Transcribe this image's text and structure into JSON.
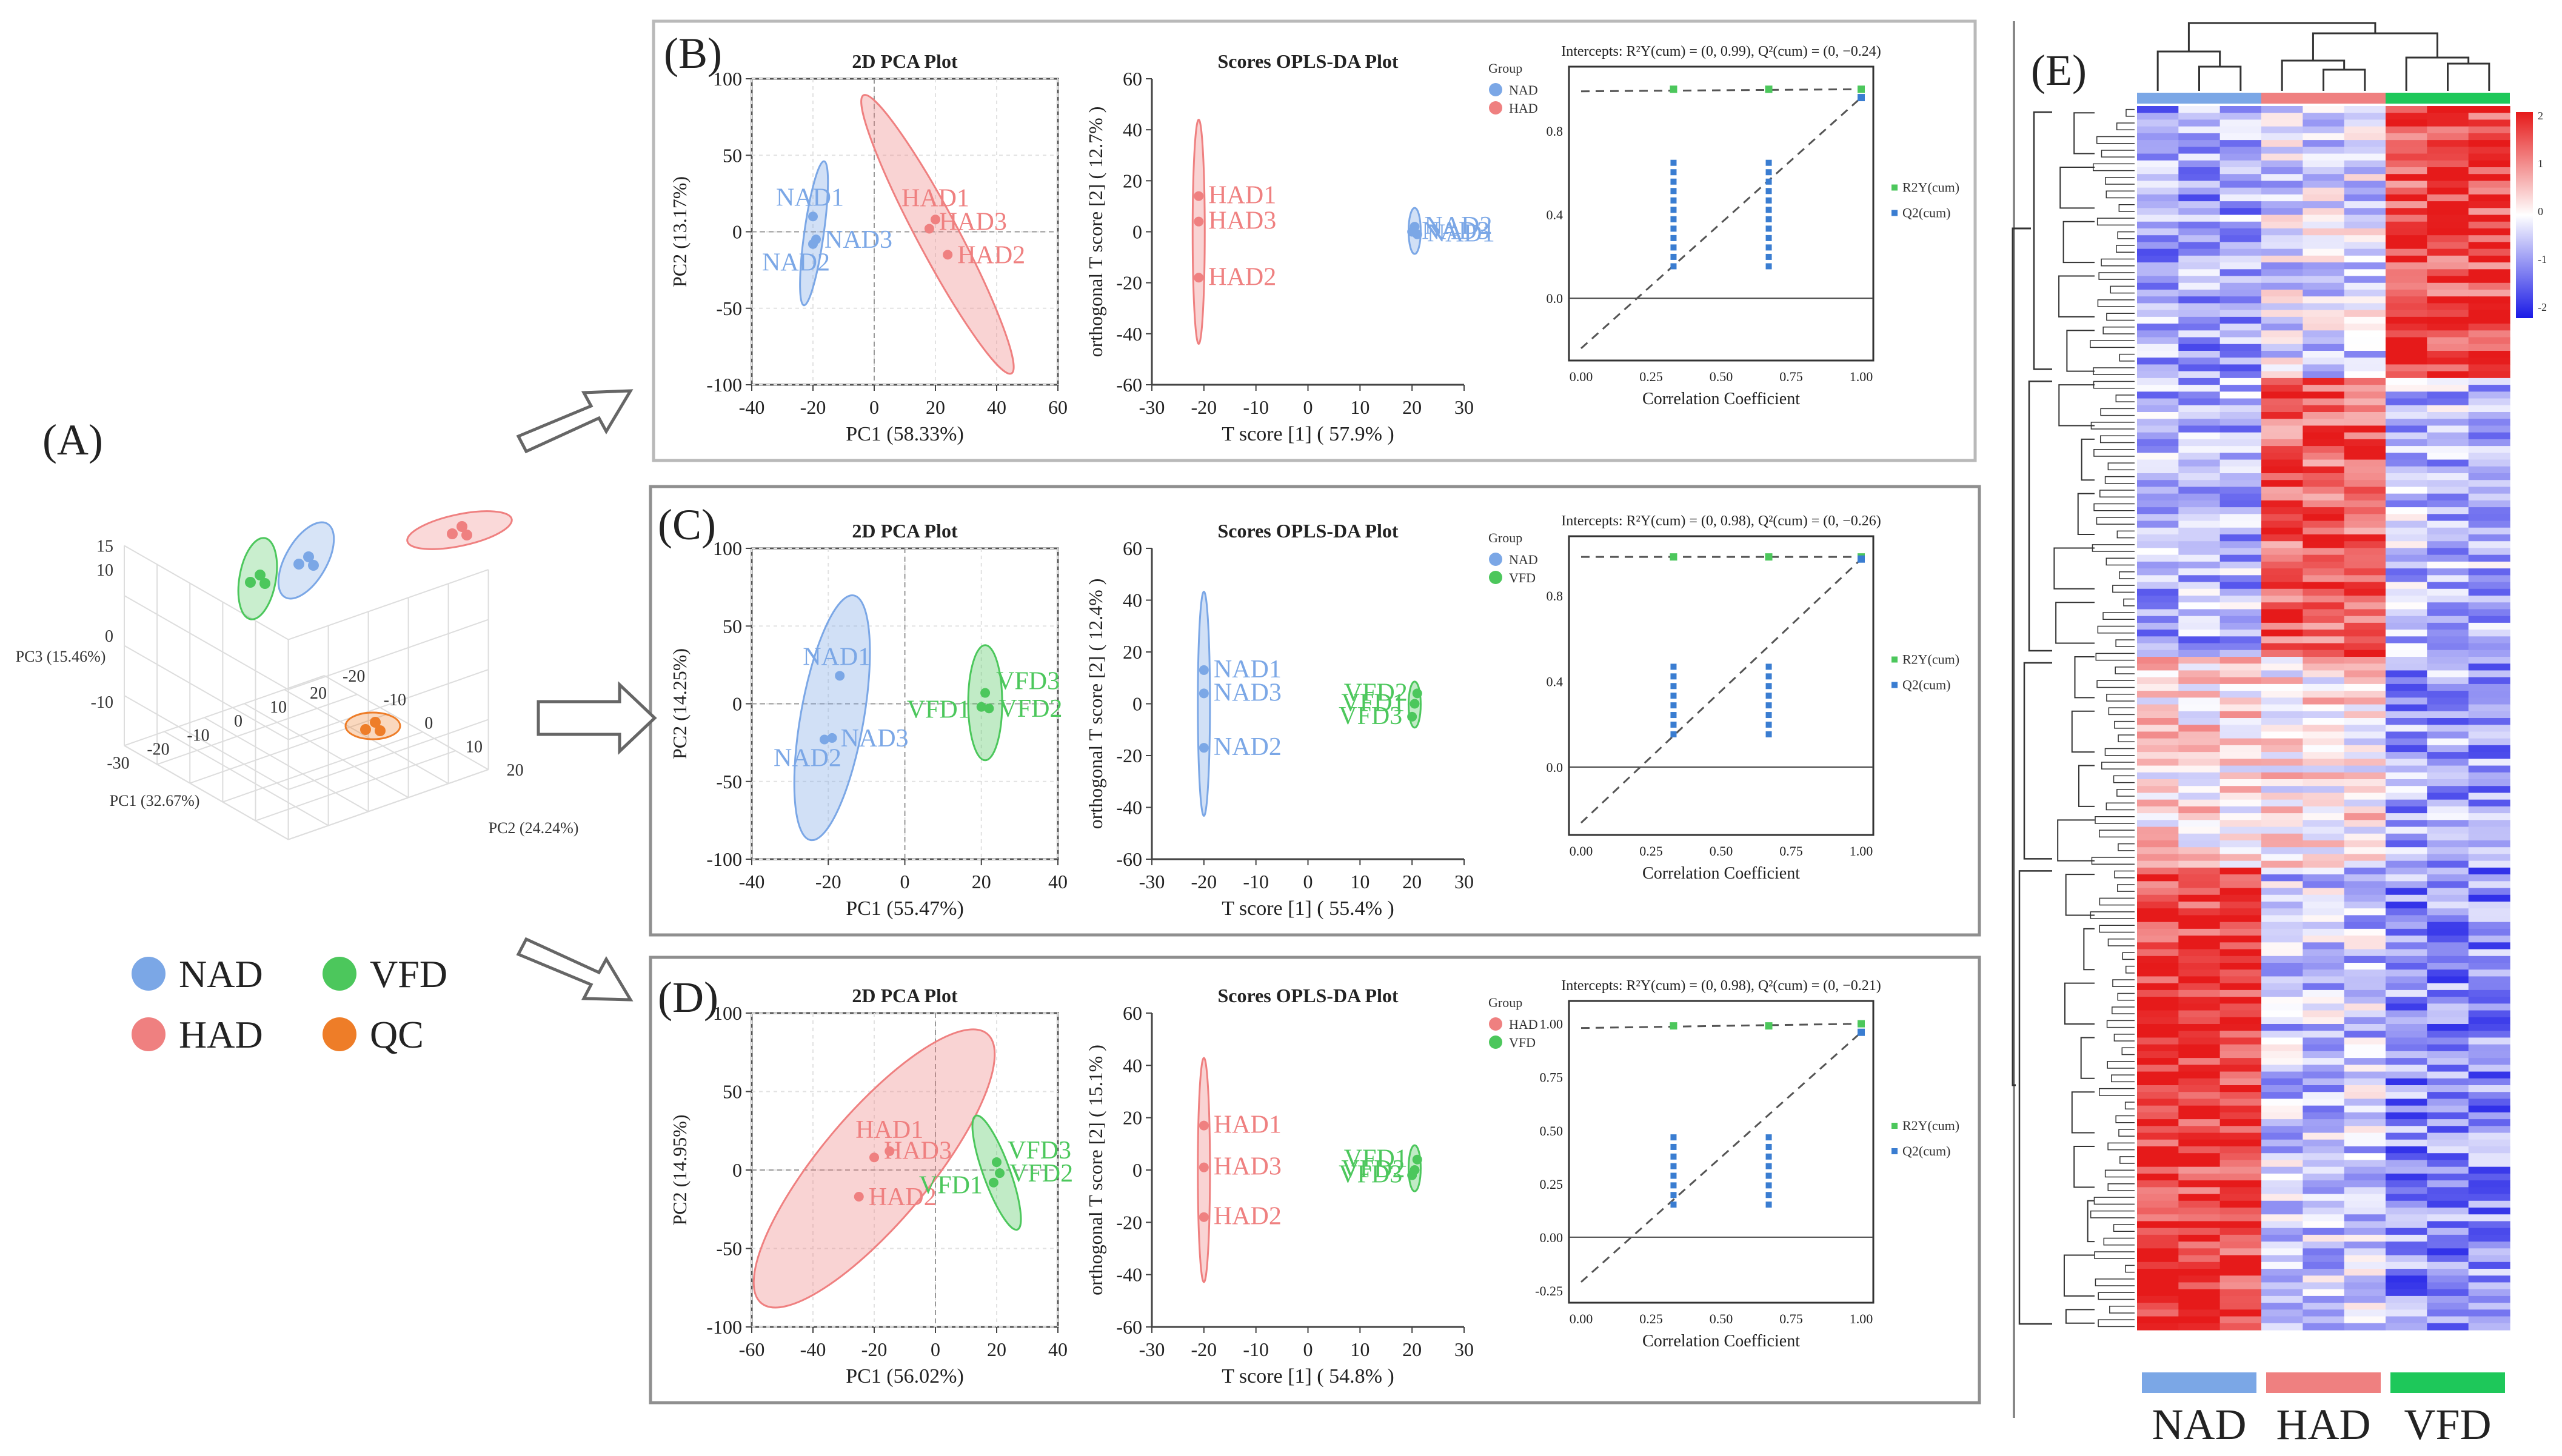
{
  "panel_labels": {
    "a": "(A)",
    "b": "(B)",
    "c": "(C)",
    "d": "(D)",
    "e": "(E)"
  },
  "colors": {
    "NAD": "#7ba7e6",
    "HAD": "#ef8080",
    "VFD": "#4cc75c",
    "QC": "#ee7d28",
    "frame": "#b9b9b9",
    "axis": "#333333",
    "grid": "#cccccc",
    "perm_r2": "#4cc75c",
    "perm_q2": "#3a7dd1"
  },
  "legend_a": [
    {
      "label": "NAD",
      "color": "#7ba7e6"
    },
    {
      "label": "VFD",
      "color": "#4cc75c"
    },
    {
      "label": "HAD",
      "color": "#ef8080"
    },
    {
      "label": "QC",
      "color": "#ee7d28"
    }
  ],
  "chart_data": [
    {
      "id": "A",
      "type": "scatter",
      "title": "",
      "axes": {
        "x": "PC1 (32.67%)",
        "y": "PC2 (24.24%)",
        "z": "PC3 (15.46%)"
      },
      "x_ticks": [
        "-30",
        "-20",
        "-10",
        "0",
        "10",
        "20"
      ],
      "y_ticks": [
        "20",
        "10",
        "0",
        "-10",
        "-20"
      ],
      "z_ticks": [
        "15",
        "10",
        "0",
        "-10"
      ],
      "groups": [
        {
          "name": "NAD",
          "color": "#7ba7e6"
        },
        {
          "name": "VFD",
          "color": "#4cc75c"
        },
        {
          "name": "HAD",
          "color": "#ef8080"
        },
        {
          "name": "QC",
          "color": "#ee7d28"
        }
      ]
    },
    {
      "id": "B-pca",
      "type": "scatter",
      "title": "2D PCA Plot",
      "xlabel": "PC1 (58.33%)",
      "ylabel": "PC2 (13.17%)",
      "xlim": [
        -40,
        60
      ],
      "ylim": [
        -100,
        100
      ],
      "xticks": [
        -40,
        -20,
        0,
        20,
        40,
        60
      ],
      "yticks": [
        -100,
        -50,
        0,
        50,
        100
      ],
      "points": [
        {
          "label": "NAD1",
          "group": "NAD",
          "x": -20,
          "y": 10
        },
        {
          "label": "NAD3",
          "group": "NAD",
          "x": -19,
          "y": -5
        },
        {
          "label": "NAD2",
          "group": "NAD",
          "x": -20,
          "y": -8
        },
        {
          "label": "HAD1",
          "group": "HAD",
          "x": 20,
          "y": 8
        },
        {
          "label": "HAD3",
          "group": "HAD",
          "x": 18,
          "y": 2
        },
        {
          "label": "HAD2",
          "group": "HAD",
          "x": 24,
          "y": -15
        }
      ]
    },
    {
      "id": "B-opls",
      "type": "scatter",
      "title": "Scores OPLS-DA Plot",
      "xlabel": "T score [1] ( 57.9% )",
      "ylabel": "orthogonal T score [2] ( 12.7% )",
      "xlim": [
        -30,
        30
      ],
      "ylim": [
        -60,
        60
      ],
      "xticks": [
        -30,
        -20,
        -10,
        0,
        10,
        20,
        30
      ],
      "yticks": [
        -60,
        -40,
        -20,
        0,
        20,
        40,
        60
      ],
      "legend_title": "Group",
      "legend": [
        "NAD",
        "HAD"
      ],
      "points": [
        {
          "label": "HAD1",
          "group": "HAD",
          "x": -21,
          "y": 14
        },
        {
          "label": "HAD3",
          "group": "HAD",
          "x": -21,
          "y": 4
        },
        {
          "label": "HAD2",
          "group": "HAD",
          "x": -21,
          "y": -18
        },
        {
          "label": "NAD2",
          "group": "NAD",
          "x": 20.5,
          "y": 2
        },
        {
          "label": "NAD3",
          "group": "NAD",
          "x": 20,
          "y": 0
        },
        {
          "label": "NAD1",
          "group": "NAD",
          "x": 21,
          "y": -1
        }
      ]
    },
    {
      "id": "B-perm",
      "type": "scatter",
      "title": "Intercepts: R²Y(cum) = (0, 0.99), Q²(cum) = (0, −0.24)",
      "xlabel": "Correlation Coefficient",
      "xlim": [
        0,
        1
      ],
      "ylim": [
        -0.24,
        1.05
      ],
      "xticks": [
        0.0,
        0.25,
        0.5,
        0.75,
        1.0
      ],
      "yticks": [
        0.0,
        0.4,
        0.8
      ],
      "xtick_labels": [
        "0.00",
        "0.25",
        "0.50",
        "0.75",
        "1.00"
      ],
      "ytick_labels": [
        "0.0",
        "0.4",
        "0.8"
      ],
      "legend": [
        "R2Y(cum)",
        "Q2(cum)"
      ],
      "r2_intercept": 0.99,
      "q2_intercept": -0.24,
      "r2": [
        {
          "x": 0.33,
          "y": 1.0
        },
        {
          "x": 0.67,
          "y": 1.0
        },
        {
          "x": 1.0,
          "y": 1.0
        }
      ],
      "q2_columns": [
        {
          "x": 0.33,
          "min": 0.15,
          "max": 0.65
        },
        {
          "x": 0.67,
          "min": 0.15,
          "max": 0.65
        }
      ],
      "q2_original": 0.96
    },
    {
      "id": "C-pca",
      "type": "scatter",
      "title": "2D PCA Plot",
      "xlabel": "PC1 (55.47%)",
      "ylabel": "PC2 (14.25%)",
      "xlim": [
        -40,
        40
      ],
      "ylim": [
        -100,
        100
      ],
      "xticks": [
        -40,
        -20,
        0,
        20,
        40
      ],
      "yticks": [
        -100,
        -50,
        0,
        50,
        100
      ],
      "points": [
        {
          "label": "NAD1",
          "group": "NAD",
          "x": -17,
          "y": 18
        },
        {
          "label": "NAD3",
          "group": "NAD",
          "x": -19,
          "y": -22
        },
        {
          "label": "NAD2",
          "group": "NAD",
          "x": -21,
          "y": -23
        },
        {
          "label": "VFD3",
          "group": "VFD",
          "x": 21,
          "y": 7
        },
        {
          "label": "VFD1",
          "group": "VFD",
          "x": 20,
          "y": -2
        },
        {
          "label": "VFD2",
          "group": "VFD",
          "x": 22,
          "y": -3
        }
      ]
    },
    {
      "id": "C-opls",
      "type": "scatter",
      "title": "Scores OPLS-DA Plot",
      "xlabel": "T score [1] ( 55.4% )",
      "ylabel": "orthogonal T score [2] ( 12.4% )",
      "xlim": [
        -30,
        30
      ],
      "ylim": [
        -60,
        60
      ],
      "xticks": [
        -30,
        -20,
        -10,
        0,
        10,
        20,
        30
      ],
      "yticks": [
        -60,
        -40,
        -20,
        0,
        20,
        40,
        60
      ],
      "legend_title": "Group",
      "legend": [
        "NAD",
        "VFD"
      ],
      "points": [
        {
          "label": "NAD1",
          "group": "NAD",
          "x": -20,
          "y": 13
        },
        {
          "label": "NAD3",
          "group": "NAD",
          "x": -20,
          "y": 4
        },
        {
          "label": "NAD2",
          "group": "NAD",
          "x": -20,
          "y": -17
        },
        {
          "label": "VFD2",
          "group": "VFD",
          "x": 21,
          "y": 4
        },
        {
          "label": "VFD1",
          "group": "VFD",
          "x": 20.5,
          "y": 0
        },
        {
          "label": "VFD3",
          "group": "VFD",
          "x": 20,
          "y": -5
        }
      ]
    },
    {
      "id": "C-perm",
      "type": "scatter",
      "title": "Intercepts: R²Y(cum) = (0, 0.98), Q²(cum) = (0, −0.26)",
      "xlabel": "Correlation Coefficient",
      "xlim": [
        0,
        1
      ],
      "ylim": [
        -0.26,
        1.02
      ],
      "xticks": [
        0.0,
        0.25,
        0.5,
        0.75,
        1.0
      ],
      "yticks": [
        0.0,
        0.4,
        0.8
      ],
      "xtick_labels": [
        "0.00",
        "0.25",
        "0.50",
        "0.75",
        "1.00"
      ],
      "ytick_labels": [
        "0.0",
        "0.4",
        "0.8"
      ],
      "legend": [
        "R2Y(cum)",
        "Q2(cum)"
      ],
      "r2_intercept": 0.98,
      "q2_intercept": -0.26,
      "r2": [
        {
          "x": 0.33,
          "y": 0.98
        },
        {
          "x": 0.67,
          "y": 0.98
        },
        {
          "x": 1.0,
          "y": 0.98
        }
      ],
      "q2_columns": [
        {
          "x": 0.33,
          "min": 0.15,
          "max": 0.48
        },
        {
          "x": 0.67,
          "min": 0.15,
          "max": 0.48
        }
      ],
      "q2_original": 0.97
    },
    {
      "id": "D-pca",
      "type": "scatter",
      "title": "2D PCA Plot",
      "xlabel": "PC1 (56.02%)",
      "ylabel": "PC2 (14.95%)",
      "xlim": [
        -60,
        40
      ],
      "ylim": [
        -100,
        100
      ],
      "xticks": [
        -60,
        -40,
        -20,
        0,
        20,
        40
      ],
      "yticks": [
        -100,
        -50,
        0,
        50,
        100
      ],
      "points": [
        {
          "label": "HAD1",
          "group": "HAD",
          "x": -15,
          "y": 12
        },
        {
          "label": "HAD3",
          "group": "HAD",
          "x": -20,
          "y": 8
        },
        {
          "label": "HAD2",
          "group": "HAD",
          "x": -25,
          "y": -17
        },
        {
          "label": "VFD3",
          "group": "VFD",
          "x": 20,
          "y": 5
        },
        {
          "label": "VFD2",
          "group": "VFD",
          "x": 21,
          "y": -2
        },
        {
          "label": "VFD1",
          "group": "VFD",
          "x": 19,
          "y": -8
        }
      ]
    },
    {
      "id": "D-opls",
      "type": "scatter",
      "title": "Scores OPLS-DA Plot",
      "xlabel": "T score [1] ( 54.8% )",
      "ylabel": "orthogonal T score [2] ( 15.1% )",
      "xlim": [
        -30,
        30
      ],
      "ylim": [
        -60,
        60
      ],
      "xticks": [
        -30,
        -20,
        -10,
        0,
        10,
        20,
        30
      ],
      "yticks": [
        -60,
        -40,
        -20,
        0,
        20,
        40,
        60
      ],
      "legend_title": "Group",
      "legend": [
        "HAD",
        "VFD"
      ],
      "points": [
        {
          "label": "HAD1",
          "group": "HAD",
          "x": -20,
          "y": 17
        },
        {
          "label": "HAD3",
          "group": "HAD",
          "x": -20,
          "y": 1
        },
        {
          "label": "HAD2",
          "group": "HAD",
          "x": -20,
          "y": -18
        },
        {
          "label": "VFD1",
          "group": "VFD",
          "x": 21,
          "y": 4
        },
        {
          "label": "VFD2",
          "group": "VFD",
          "x": 20.5,
          "y": 0
        },
        {
          "label": "VFD3",
          "group": "VFD",
          "x": 20,
          "y": -2
        }
      ]
    },
    {
      "id": "D-perm",
      "type": "scatter",
      "title": "Intercepts: R²Y(cum) = (0, 0.98), Q²(cum) = (0, −0.21)",
      "xlabel": "Correlation Coefficient",
      "xlim": [
        0,
        1
      ],
      "ylim": [
        -0.25,
        1.05
      ],
      "xticks": [
        0.0,
        0.25,
        0.5,
        0.75,
        1.0
      ],
      "yticks": [
        -0.25,
        0.0,
        0.25,
        0.5,
        0.75,
        1.0
      ],
      "xtick_labels": [
        "0.00",
        "0.25",
        "0.50",
        "0.75",
        "1.00"
      ],
      "ytick_labels": [
        "-0.25",
        "0.00",
        "0.25",
        "0.50",
        "0.75",
        "1.00"
      ],
      "legend": [
        "R2Y(cum)",
        "Q2(cum)"
      ],
      "r2_intercept": 0.98,
      "q2_intercept": -0.21,
      "r2": [
        {
          "x": 0.33,
          "y": 0.99
        },
        {
          "x": 0.67,
          "y": 0.99
        },
        {
          "x": 1.0,
          "y": 1.0
        }
      ],
      "q2_columns": [
        {
          "x": 0.33,
          "min": 0.15,
          "max": 0.48
        },
        {
          "x": 0.67,
          "min": 0.15,
          "max": 0.48
        }
      ],
      "q2_original": 0.96
    },
    {
      "id": "E",
      "type": "heatmap",
      "title": "",
      "columns": [
        "NAD",
        "NAD",
        "NAD",
        "HAD",
        "HAD",
        "HAD",
        "VFD",
        "VFD",
        "VFD"
      ],
      "groups": [
        {
          "name": "NAD",
          "color": "#7ba7e6"
        },
        {
          "name": "HAD",
          "color": "#ef8080"
        },
        {
          "name": "VFD",
          "color": "#1ec85a"
        }
      ],
      "color_scale": {
        "min": -2,
        "max": 2,
        "low": "#1a1ae6",
        "mid": "#ffffff",
        "high": "#e61a1a",
        "ticks": [
          "2",
          "1",
          "0",
          "-1",
          "-2"
        ]
      },
      "group_profile": {
        "top_block": {
          "NAD": -0.8,
          "HAD": -0.3,
          "VFD": 1.6
        },
        "middle_block": {
          "NAD": -0.7,
          "HAD": 1.4,
          "VFD": -0.6
        },
        "lower_block": {
          "NAD": 0.3,
          "HAD": 0.2,
          "VFD": -0.8
        },
        "bottom_block": {
          "NAD": 1.7,
          "HAD": -0.5,
          "VFD": -1.0
        }
      }
    }
  ]
}
